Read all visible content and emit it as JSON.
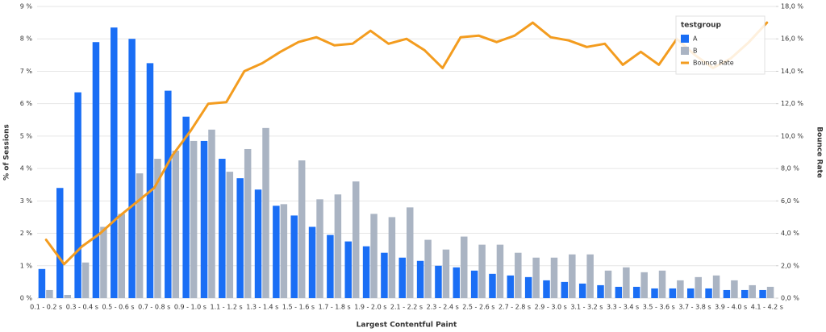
{
  "chart_data": {
    "type": "bar_line",
    "x_label": "Largest Contentful Paint",
    "y_label": "% of Sessions",
    "y2_label": "Bounce Rate",
    "legend_title": "testgroup",
    "legend": "top-right",
    "grid": true,
    "categories": [
      "0.1 - 0.2 s",
      null,
      "0.3 - 0.4 s",
      null,
      "0.5 - 0.6 s",
      null,
      "0.7 - 0.8 s",
      null,
      "0.9 - 1.0 s",
      null,
      "1.1 - 1.2 s",
      null,
      "1.3 - 1.4 s",
      null,
      "1.5 - 1.6 s",
      null,
      "1.7 - 1.8 s",
      null,
      "1.9 - 2.0 s",
      null,
      "2.1 - 2.2 s",
      null,
      "2.3 - 2.4 s",
      null,
      "2.5 - 2.6 s",
      null,
      "2.7 - 2.8 s",
      null,
      "2.9 - 3.0 s",
      null,
      "3.1 - 3.2 s",
      null,
      "3.3 - 3.4 s",
      null,
      "3.5 - 3.6 s",
      null,
      "3.7 - 3.8 s",
      null,
      "3.9 - 4.0 s",
      null,
      "4.1 - 4.2 s"
    ],
    "series": [
      {
        "name": "A",
        "type": "bar",
        "color": "#1a6ef5",
        "values": [
          0.9,
          3.4,
          6.35,
          7.9,
          8.35,
          8.0,
          7.25,
          6.4,
          5.6,
          4.85,
          4.3,
          3.7,
          3.35,
          2.85,
          2.55,
          2.2,
          1.95,
          1.75,
          1.6,
          1.4,
          1.25,
          1.15,
          1.0,
          0.95,
          0.85,
          0.75,
          0.7,
          0.65,
          0.55,
          0.5,
          0.45,
          0.4,
          0.35,
          0.35,
          0.3,
          0.3,
          0.3,
          0.3,
          0.25,
          0.25,
          0.25
        ]
      },
      {
        "name": "B",
        "type": "bar",
        "color": "#aab4c3",
        "values": [
          0.25,
          0.1,
          1.1,
          2.2,
          2.6,
          3.85,
          4.3,
          4.55,
          4.85,
          5.2,
          3.9,
          4.6,
          5.25,
          2.9,
          4.25,
          3.05,
          3.2,
          3.6,
          2.6,
          2.5,
          2.8,
          1.8,
          1.5,
          1.9,
          1.65,
          1.65,
          1.4,
          1.25,
          1.25,
          1.35,
          1.35,
          0.85,
          0.95,
          0.8,
          0.85,
          0.55,
          0.65,
          0.7,
          0.55,
          0.4,
          0.35
        ]
      },
      {
        "name": "Bounce Rate",
        "type": "line",
        "axis": "y2",
        "color": "#f39c1f",
        "values": [
          3.6,
          2.1,
          3.2,
          4.0,
          5.0,
          5.9,
          6.8,
          8.8,
          10.3,
          12.0,
          12.1,
          14.0,
          14.5,
          15.2,
          15.8,
          16.1,
          15.6,
          15.7,
          16.5,
          15.7,
          16.0,
          15.3,
          14.2,
          16.1,
          16.2,
          15.8,
          16.2,
          17.0,
          16.1,
          15.9,
          15.5,
          15.7,
          14.4,
          15.2,
          14.4,
          16.0,
          15.0,
          14.2,
          14.8,
          15.8,
          17.0
        ]
      }
    ],
    "ylim": [
      0,
      9
    ],
    "yticks": [
      {
        "value": 0,
        "label": "0 %"
      },
      {
        "value": 1,
        "label": "1 %"
      },
      {
        "value": 2,
        "label": "2 %"
      },
      {
        "value": 3,
        "label": "3 %"
      },
      {
        "value": 4,
        "label": "4 %"
      },
      {
        "value": 5,
        "label": "5 %"
      },
      {
        "value": 6,
        "label": "6 %"
      },
      {
        "value": 7,
        "label": "7 %"
      },
      {
        "value": 8,
        "label": "8 %"
      },
      {
        "value": 9,
        "label": "9 %"
      }
    ],
    "y2lim": [
      0,
      18
    ],
    "y2ticks": [
      {
        "value": 0,
        "label": "0,0 %"
      },
      {
        "value": 2,
        "label": "2,0 %"
      },
      {
        "value": 4,
        "label": "4,0 %"
      },
      {
        "value": 6,
        "label": "6,0 %"
      },
      {
        "value": 8,
        "label": "8,0 %"
      },
      {
        "value": 10,
        "label": "10,0 %"
      },
      {
        "value": 12,
        "label": "12,0 %"
      },
      {
        "value": 14,
        "label": "14,0 %"
      },
      {
        "value": 16,
        "label": "16,0 %"
      },
      {
        "value": 18,
        "label": "18,0 %"
      }
    ]
  }
}
